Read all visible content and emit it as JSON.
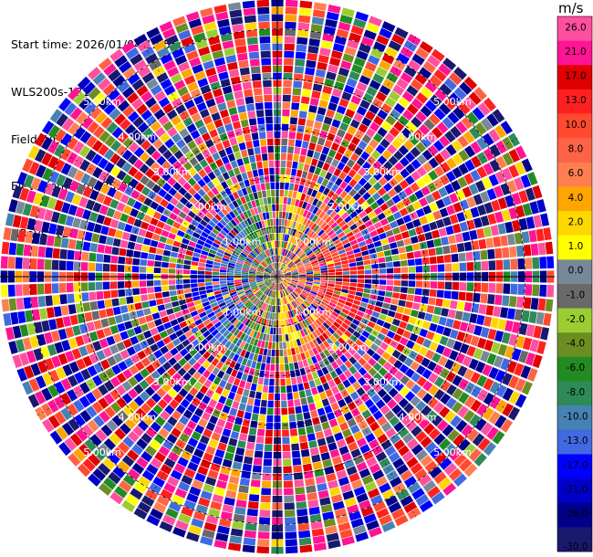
{
  "header": {
    "lines": [
      "Start time: 2026/01/04 12:55:51",
      "WLS200s-181",
      "Field: VEL",
      "Elevation(deg): 35.00",
      "NRays: 120"
    ]
  },
  "chart_data": {
    "type": "heatmap",
    "projection": "polar-ppi",
    "field": "VEL",
    "units": "m/s",
    "n_rays": 120,
    "range_ring_labels": [
      "1.00km",
      "2.00km",
      "3.00km",
      "4.00km",
      "5.00km"
    ],
    "range_rings_km": [
      1,
      2,
      3,
      4,
      5
    ],
    "max_range_km": 5.6,
    "colorbar": {
      "label": "m/s",
      "ticks": [
        "26.0",
        "21.0",
        "17.0",
        "13.0",
        "10.0",
        "8.0",
        "6.0",
        "4.0",
        "2.0",
        "1.0",
        "0.0",
        "-1.0",
        "-2.0",
        "-4.0",
        "-6.0",
        "-8.0",
        "-10.0",
        "-13.0",
        "-17.0",
        "-21.0",
        "-26.0",
        "-30.0"
      ],
      "bins": [
        {
          "min": 26,
          "max": 30,
          "color": "#ff4fa0"
        },
        {
          "min": 21,
          "max": 26,
          "color": "#ff1493"
        },
        {
          "min": 17,
          "max": 21,
          "color": "#e00000"
        },
        {
          "min": 13,
          "max": 17,
          "color": "#ff2020"
        },
        {
          "min": 10,
          "max": 13,
          "color": "#ff4a30"
        },
        {
          "min": 8,
          "max": 10,
          "color": "#ff6347"
        },
        {
          "min": 6,
          "max": 8,
          "color": "#ff7f50"
        },
        {
          "min": 4,
          "max": 6,
          "color": "#ffa500"
        },
        {
          "min": 2,
          "max": 4,
          "color": "#ffd700"
        },
        {
          "min": 1,
          "max": 2,
          "color": "#ffff00"
        },
        {
          "min": 0,
          "max": 1,
          "color": "#778899"
        },
        {
          "min": -1,
          "max": 0,
          "color": "#696969"
        },
        {
          "min": -2,
          "max": -1,
          "color": "#9acd32"
        },
        {
          "min": -4,
          "max": -2,
          "color": "#6b8e23"
        },
        {
          "min": -6,
          "max": -4,
          "color": "#228b22"
        },
        {
          "min": -8,
          "max": -6,
          "color": "#2e8b57"
        },
        {
          "min": -10,
          "max": -8,
          "color": "#4682b4"
        },
        {
          "min": -13,
          "max": -10,
          "color": "#4169e1"
        },
        {
          "min": -17,
          "max": -13,
          "color": "#0000ff"
        },
        {
          "min": -21,
          "max": -17,
          "color": "#0000cd"
        },
        {
          "min": -26,
          "max": -21,
          "color": "#00008b"
        },
        {
          "min": -30,
          "max": -26,
          "color": "#191970"
        }
      ]
    }
  }
}
